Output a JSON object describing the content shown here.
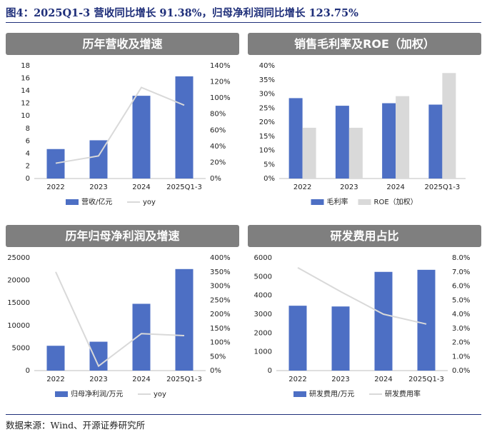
{
  "figure": {
    "title": "图4：2025Q1-3 营收同比增长 91.38%，归母净利润同比增长 123.75%",
    "source": "数据来源：Wind、开源证券研究所"
  },
  "colors": {
    "bar": "#4d6fc4",
    "bar2": "#d9d9d9",
    "line": "#d9d9d9",
    "header": "#7f7f7f",
    "title": "#1f2f7a"
  },
  "chart_data": [
    {
      "id": "revenue",
      "panel_title": "历年营收及增速",
      "type": "bar",
      "categories": [
        "2022",
        "2023",
        "2024",
        "2025Q1-3"
      ],
      "series": [
        {
          "name": "营收/亿元",
          "kind": "bar",
          "axis": "left",
          "values": [
            4.7,
            6.1,
            13.2,
            16.3
          ]
        },
        {
          "name": "yoy",
          "kind": "line",
          "axis": "right",
          "values": [
            0.19,
            0.28,
            1.13,
            0.91
          ]
        }
      ],
      "left_axis": {
        "min": 0,
        "max": 18,
        "ticks": [
          0,
          2,
          4,
          6,
          8,
          10,
          12,
          14,
          16,
          18
        ],
        "labels": [
          "0",
          "2",
          "4",
          "6",
          "8",
          "10",
          "12",
          "14",
          "16",
          "18"
        ]
      },
      "right_axis": {
        "min": 0,
        "max": 1.4,
        "ticks": [
          0,
          0.2,
          0.4,
          0.6,
          0.8,
          1.0,
          1.2,
          1.4
        ],
        "labels": [
          "0%",
          "20%",
          "40%",
          "60%",
          "80%",
          "100%",
          "120%",
          "140%"
        ]
      }
    },
    {
      "id": "margin",
      "panel_title": "销售毛利率及ROE（加权）",
      "type": "bar",
      "categories": [
        "2022",
        "2023",
        "2024",
        "2025Q1-3"
      ],
      "series": [
        {
          "name": "毛利率",
          "kind": "bar",
          "axis": "left",
          "values": [
            0.285,
            0.258,
            0.267,
            0.262
          ]
        },
        {
          "name": "ROE（加权）",
          "kind": "bar2",
          "axis": "left",
          "values": [
            0.18,
            0.18,
            0.292,
            0.374
          ]
        }
      ],
      "left_axis": {
        "min": 0,
        "max": 0.4,
        "ticks": [
          0,
          0.05,
          0.1,
          0.15,
          0.2,
          0.25,
          0.3,
          0.35,
          0.4
        ],
        "labels": [
          "0%",
          "5%",
          "10%",
          "15%",
          "20%",
          "25%",
          "30%",
          "35%",
          "40%"
        ]
      }
    },
    {
      "id": "netprofit",
      "panel_title": "历年归母净利润及增速",
      "type": "bar",
      "categories": [
        "2022",
        "2023",
        "2024",
        "2025Q1-3"
      ],
      "series": [
        {
          "name": "归母净利润/万元",
          "kind": "bar",
          "axis": "left",
          "values": [
            5500,
            6400,
            14800,
            22500
          ]
        },
        {
          "name": "yoy",
          "kind": "line",
          "axis": "right",
          "values": [
            3.5,
            0.16,
            1.31,
            1.24
          ]
        }
      ],
      "left_axis": {
        "min": 0,
        "max": 25000,
        "ticks": [
          0,
          5000,
          10000,
          15000,
          20000,
          25000
        ],
        "labels": [
          "0",
          "5000",
          "10000",
          "15000",
          "20000",
          "25000"
        ]
      },
      "right_axis": {
        "min": 0,
        "max": 4.0,
        "ticks": [
          0,
          0.5,
          1.0,
          1.5,
          2.0,
          2.5,
          3.0,
          3.5,
          4.0
        ],
        "labels": [
          "0%",
          "50%",
          "100%",
          "150%",
          "200%",
          "250%",
          "300%",
          "350%",
          "400%"
        ]
      }
    },
    {
      "id": "rnd",
      "panel_title": "研发费用占比",
      "type": "bar",
      "categories": [
        "2022",
        "2023",
        "2024",
        "2025Q1-3"
      ],
      "series": [
        {
          "name": "研发费用/万元",
          "kind": "bar",
          "axis": "left",
          "values": [
            3450,
            3410,
            5250,
            5360
          ]
        },
        {
          "name": "研发费用率",
          "kind": "line",
          "axis": "right",
          "values": [
            0.073,
            0.056,
            0.04,
            0.033
          ]
        }
      ],
      "left_axis": {
        "min": 0,
        "max": 6000,
        "ticks": [
          0,
          1000,
          2000,
          3000,
          4000,
          5000,
          6000
        ],
        "labels": [
          "0",
          "1000",
          "2000",
          "3000",
          "4000",
          "5000",
          "6000"
        ]
      },
      "right_axis": {
        "min": 0,
        "max": 0.08,
        "ticks": [
          0,
          0.01,
          0.02,
          0.03,
          0.04,
          0.05,
          0.06,
          0.07,
          0.08
        ],
        "labels": [
          "0.0%",
          "1.0%",
          "2.0%",
          "3.0%",
          "4.0%",
          "5.0%",
          "6.0%",
          "7.0%",
          "8.0%"
        ]
      }
    }
  ]
}
